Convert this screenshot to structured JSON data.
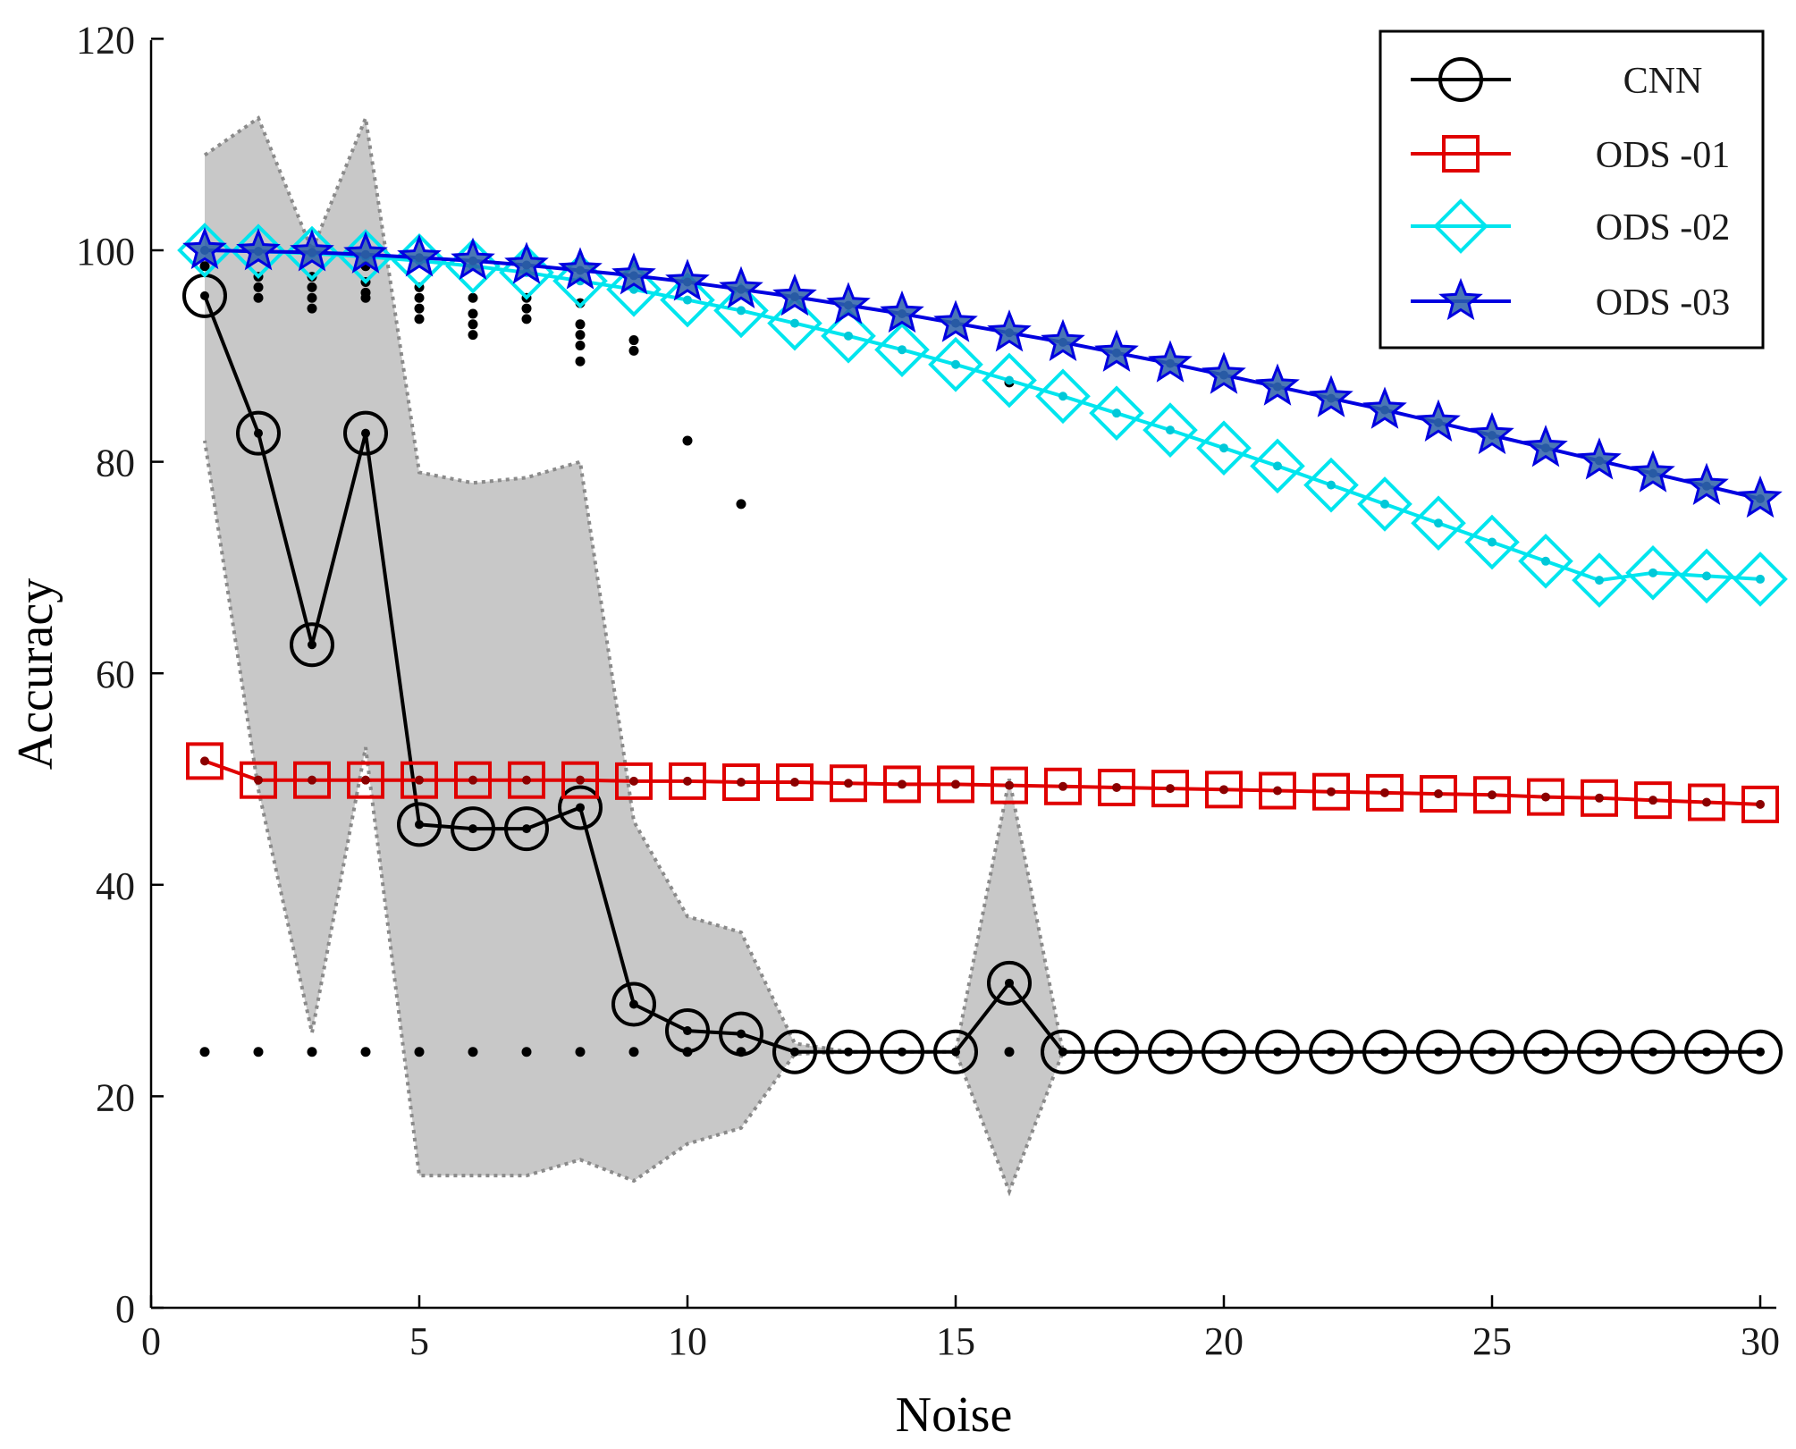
{
  "chart_data": {
    "type": "line",
    "title": "",
    "xlabel": "Noise",
    "ylabel": "Accuracy",
    "xlim": [
      0,
      30
    ],
    "ylim": [
      0,
      120
    ],
    "xticks": [
      0,
      5,
      10,
      15,
      20,
      25,
      30
    ],
    "yticks": [
      0,
      20,
      40,
      60,
      80,
      100,
      120
    ],
    "x": [
      1,
      2,
      3,
      4,
      5,
      6,
      7,
      8,
      9,
      10,
      11,
      12,
      13,
      14,
      15,
      16,
      17,
      18,
      19,
      20,
      21,
      22,
      23,
      24,
      25,
      26,
      27,
      28,
      29,
      30
    ],
    "legend_position": "top-right",
    "series": [
      {
        "name": "CNN",
        "color": "#000000",
        "marker": "circle",
        "values": [
          95.7,
          82.7,
          62.7,
          82.7,
          45.7,
          45.3,
          45.3,
          47.3,
          28.7,
          26.2,
          25.9,
          24.2,
          24.2,
          24.2,
          24.2,
          30.7,
          24.2,
          24.2,
          24.2,
          24.2,
          24.2,
          24.2,
          24.2,
          24.2,
          24.2,
          24.2,
          24.2,
          24.2,
          24.2,
          24.2
        ]
      },
      {
        "name": "ODS -01",
        "color": "#e00000",
        "marker": "square",
        "values": [
          51.7,
          49.9,
          49.9,
          49.9,
          49.9,
          49.9,
          49.9,
          49.9,
          49.8,
          49.8,
          49.7,
          49.7,
          49.6,
          49.5,
          49.5,
          49.4,
          49.3,
          49.2,
          49.1,
          49.0,
          48.9,
          48.8,
          48.7,
          48.6,
          48.5,
          48.3,
          48.2,
          48.0,
          47.8,
          47.6
        ]
      },
      {
        "name": "ODS -02",
        "color": "#00e5ee",
        "marker": "diamond",
        "values": [
          100.0,
          99.9,
          99.7,
          99.4,
          99.0,
          98.5,
          97.9,
          97.1,
          96.3,
          95.3,
          94.3,
          93.1,
          91.9,
          90.6,
          89.2,
          87.7,
          86.2,
          84.6,
          83.0,
          81.3,
          79.6,
          77.8,
          76.0,
          74.2,
          72.4,
          70.6,
          68.8,
          69.5,
          69.2,
          68.9
        ]
      },
      {
        "name": "ODS -03",
        "color": "#0000e0",
        "marker": "star",
        "values": [
          100.0,
          99.9,
          99.8,
          99.6,
          99.3,
          99.0,
          98.6,
          98.1,
          97.6,
          97.0,
          96.3,
          95.6,
          94.8,
          94.0,
          93.1,
          92.2,
          91.3,
          90.3,
          89.3,
          88.2,
          87.1,
          86.0,
          84.9,
          83.7,
          82.5,
          81.3,
          80.1,
          78.9,
          77.7,
          76.5
        ]
      }
    ],
    "uncertainty_band": {
      "series": "CNN",
      "color": "#c8c8c8",
      "upper": [
        109,
        112.5,
        100,
        112.5,
        79,
        78,
        78.5,
        80,
        46,
        37,
        35.5,
        25,
        24.2,
        24.2,
        24.2,
        50,
        24.2,
        24.2,
        24.2,
        24.2,
        24.2,
        24.2,
        24.2,
        24.2,
        24.2,
        24.2,
        24.2,
        24.2,
        24.2,
        24.2
      ],
      "lower": [
        82,
        49,
        26,
        53,
        12.5,
        12.5,
        12.5,
        14,
        12,
        15.5,
        17,
        24,
        24.2,
        24.2,
        24.2,
        11,
        24.2,
        24.2,
        24.2,
        24.2,
        24.2,
        24.2,
        24.2,
        24.2,
        24.2,
        24.2,
        24.2,
        24.2,
        24.2,
        24.2
      ]
    },
    "outlier_points": [
      [
        1,
        24.2
      ],
      [
        2,
        24.2
      ],
      [
        3,
        24.2
      ],
      [
        4,
        24.2
      ],
      [
        5,
        24.2
      ],
      [
        6,
        24.2
      ],
      [
        7,
        24.2
      ],
      [
        8,
        24.2
      ],
      [
        9,
        24.2
      ],
      [
        10,
        24.2
      ],
      [
        11,
        24.2
      ],
      [
        16,
        24.2
      ],
      [
        1,
        98.5
      ],
      [
        2,
        97.5
      ],
      [
        2,
        96.5
      ],
      [
        2,
        95.5
      ],
      [
        3,
        97.5
      ],
      [
        3,
        96.5
      ],
      [
        3,
        95.5
      ],
      [
        3,
        94.5
      ],
      [
        4,
        98.5
      ],
      [
        4,
        97
      ],
      [
        4,
        96
      ],
      [
        4,
        95.5
      ],
      [
        5,
        96.5
      ],
      [
        5,
        95.5
      ],
      [
        5,
        94.5
      ],
      [
        5,
        93.5
      ],
      [
        6,
        95.5
      ],
      [
        6,
        94
      ],
      [
        6,
        93
      ],
      [
        6,
        92
      ],
      [
        7,
        95.5
      ],
      [
        7,
        94.5
      ],
      [
        7,
        93.5
      ],
      [
        8,
        95
      ],
      [
        8,
        93
      ],
      [
        8,
        92
      ],
      [
        8,
        91
      ],
      [
        8,
        89.5
      ],
      [
        9,
        91.5
      ],
      [
        9,
        90.5
      ],
      [
        10,
        82
      ],
      [
        11,
        76
      ],
      [
        16,
        87.5
      ]
    ]
  }
}
